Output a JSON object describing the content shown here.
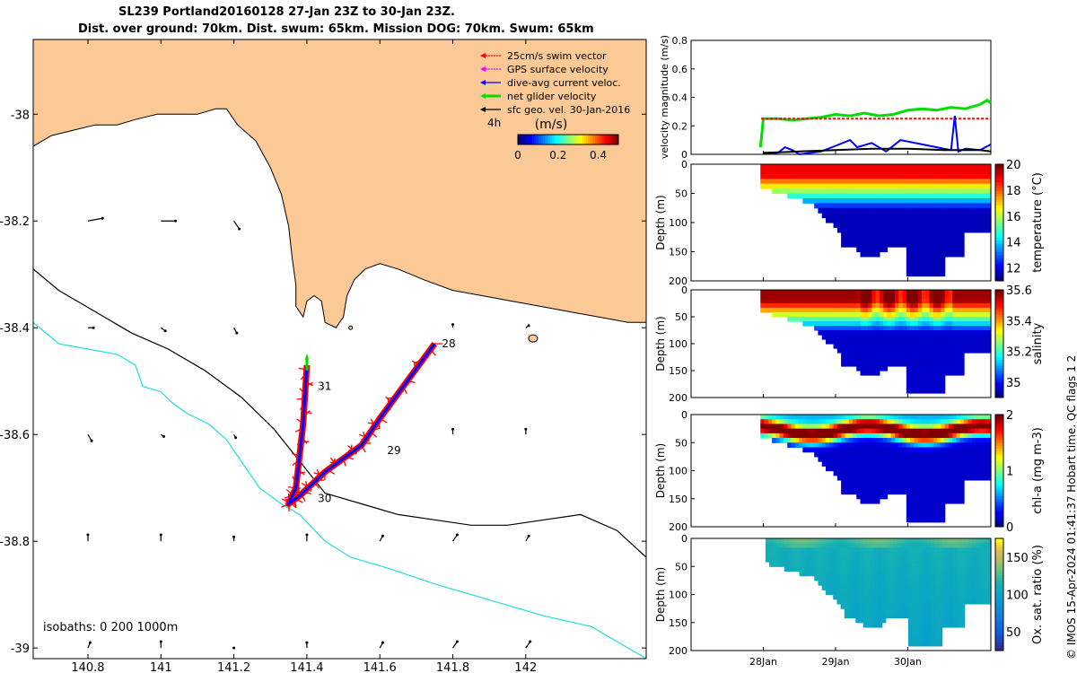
{
  "title": {
    "line1": "SL239 Portland20160128 27-Jan 23Z to 30-Jan 23Z.",
    "line2": "Dist. over ground: 70km. Dist. swum: 65km. Mission DOG: 70km. Swum: 65km"
  },
  "credit": "© IMOS 15-Apr-2024 01:41:37 Hobart time. QC flags 1  2",
  "colors": {
    "land": "#fbc995",
    "swim": "#ff0000",
    "gps": "#ff00ff",
    "dive_avg": "#0000ff",
    "net": "#00dd00",
    "sfc_geo": "#000000",
    "isobath200": "#000000",
    "isobath1000": "#22dddd"
  },
  "chart_data": [
    {
      "type": "scatter",
      "name": "map",
      "xlim": [
        140.65,
        142.33
      ],
      "ylim": [
        -39.02,
        -37.86
      ],
      "xticks": [
        "140.8",
        "141",
        "141.2",
        "141.4",
        "141.6",
        "141.8",
        "142"
      ],
      "xtick_values": [
        140.8,
        141.0,
        141.2,
        141.4,
        141.6,
        141.8,
        142.0
      ],
      "yticks": [
        "-38",
        "-38.2",
        "-38.4",
        "-38.6",
        "-38.8",
        "-39"
      ],
      "ytick_values": [
        -38.0,
        -38.2,
        -38.4,
        -38.6,
        -38.8,
        -39.0
      ],
      "legend": {
        "placement": "top-right",
        "entries": [
          {
            "label": "25cm/s swim vector",
            "color": "#ff0000"
          },
          {
            "label": "GPS surface velocity",
            "color": "#ff00ff"
          },
          {
            "label": "dive-avg current veloc.",
            "color": "#0000ff"
          },
          {
            "label": "net glider velocity",
            "color": "#00dd00"
          },
          {
            "label": "sfc geo. vel. 30-Jan-2016",
            "color": "#000000"
          }
        ]
      },
      "colorbar": {
        "label": "(m/s)",
        "prefix": "4h",
        "ticks": [
          "0",
          "0.2",
          "0.4"
        ],
        "range": [
          0,
          0.5
        ]
      },
      "isobath_note": "isobaths: 0   200  1000m",
      "track_labels": [
        {
          "text": "28",
          "lon": 141.77,
          "lat": -38.43
        },
        {
          "text": "29",
          "lon": 141.62,
          "lat": -38.63
        },
        {
          "text": "30",
          "lon": 141.43,
          "lat": -38.72
        },
        {
          "text": "31",
          "lon": 141.43,
          "lat": -38.51
        }
      ],
      "track": [
        [
          141.75,
          -38.43
        ],
        [
          141.6,
          -38.57
        ],
        [
          141.55,
          -38.62
        ],
        [
          141.45,
          -38.67
        ],
        [
          141.38,
          -38.715
        ],
        [
          141.35,
          -38.73
        ],
        [
          141.37,
          -38.7
        ],
        [
          141.39,
          -38.58
        ],
        [
          141.4,
          -38.47
        ]
      ],
      "coast": [
        [
          140.65,
          -38.06
        ],
        [
          140.7,
          -38.04
        ],
        [
          140.76,
          -38.03
        ],
        [
          140.82,
          -38.02
        ],
        [
          140.88,
          -38.02
        ],
        [
          140.93,
          -38.01
        ],
        [
          140.99,
          -38.0
        ],
        [
          141.05,
          -38.0
        ],
        [
          141.1,
          -38.0
        ],
        [
          141.15,
          -37.99
        ],
        [
          141.18,
          -37.99
        ],
        [
          141.21,
          -38.02
        ],
        [
          141.26,
          -38.05
        ],
        [
          141.3,
          -38.1
        ],
        [
          141.33,
          -38.15
        ],
        [
          141.35,
          -38.21
        ],
        [
          141.36,
          -38.27
        ],
        [
          141.37,
          -38.32
        ],
        [
          141.37,
          -38.36
        ],
        [
          141.39,
          -38.38
        ],
        [
          141.4,
          -38.35
        ],
        [
          141.42,
          -38.34
        ],
        [
          141.44,
          -38.35
        ],
        [
          141.45,
          -38.39
        ],
        [
          141.48,
          -38.4
        ],
        [
          141.5,
          -38.38
        ],
        [
          141.51,
          -38.34
        ],
        [
          141.53,
          -38.31
        ],
        [
          141.56,
          -38.29
        ],
        [
          141.6,
          -38.28
        ],
        [
          141.65,
          -38.29
        ],
        [
          141.72,
          -38.31
        ],
        [
          141.8,
          -38.33
        ],
        [
          141.88,
          -38.34
        ],
        [
          141.96,
          -38.35
        ],
        [
          142.04,
          -38.36
        ],
        [
          142.12,
          -38.37
        ],
        [
          142.2,
          -38.38
        ],
        [
          142.28,
          -38.39
        ],
        [
          142.33,
          -38.39
        ]
      ],
      "isobath_200": [
        [
          140.65,
          -38.29
        ],
        [
          140.72,
          -38.33
        ],
        [
          140.82,
          -38.37
        ],
        [
          140.92,
          -38.41
        ],
        [
          141.02,
          -38.44
        ],
        [
          141.12,
          -38.48
        ],
        [
          141.22,
          -38.53
        ],
        [
          141.31,
          -38.59
        ],
        [
          141.38,
          -38.65
        ],
        [
          141.45,
          -38.71
        ],
        [
          141.55,
          -38.73
        ],
        [
          141.65,
          -38.75
        ],
        [
          141.75,
          -38.76
        ],
        [
          141.85,
          -38.77
        ],
        [
          141.95,
          -38.77
        ],
        [
          142.05,
          -38.76
        ],
        [
          142.15,
          -38.75
        ],
        [
          142.25,
          -38.78
        ],
        [
          142.33,
          -38.83
        ]
      ],
      "isobath_1000": [
        [
          140.65,
          -38.39
        ],
        [
          140.72,
          -38.43
        ],
        [
          140.8,
          -38.44
        ],
        [
          140.88,
          -38.45
        ],
        [
          140.93,
          -38.47
        ],
        [
          140.95,
          -38.51
        ],
        [
          141.0,
          -38.52
        ],
        [
          141.03,
          -38.54
        ],
        [
          141.07,
          -38.56
        ],
        [
          141.13,
          -38.58
        ],
        [
          141.18,
          -38.61
        ],
        [
          141.22,
          -38.65
        ],
        [
          141.27,
          -38.7
        ],
        [
          141.33,
          -38.73
        ],
        [
          141.38,
          -38.75
        ],
        [
          141.45,
          -38.8
        ],
        [
          141.52,
          -38.83
        ],
        [
          141.62,
          -38.85
        ],
        [
          141.75,
          -38.88
        ],
        [
          141.9,
          -38.91
        ],
        [
          142.05,
          -38.94
        ],
        [
          142.18,
          -38.96
        ],
        [
          142.28,
          -39.0
        ],
        [
          142.33,
          -39.02
        ]
      ],
      "geo_vectors": [
        [
          140.8,
          -38.2,
          0.04,
          0.005
        ],
        [
          141.0,
          -38.2,
          0.04,
          0.0
        ],
        [
          141.2,
          -38.2,
          0.015,
          -0.015
        ],
        [
          140.8,
          -38.4,
          0.015,
          0.0
        ],
        [
          141.0,
          -38.4,
          0.012,
          -0.006
        ],
        [
          141.2,
          -38.4,
          0.008,
          -0.01
        ],
        [
          141.8,
          -38.4,
          0.0,
          0.006
        ],
        [
          142.0,
          -38.4,
          0.008,
          0.004
        ],
        [
          140.8,
          -38.6,
          0.01,
          -0.012
        ],
        [
          141.0,
          -38.6,
          0.008,
          -0.004
        ],
        [
          141.2,
          -38.6,
          0.005,
          -0.006
        ],
        [
          141.8,
          -38.6,
          0.0,
          0.01
        ],
        [
          142.0,
          -38.6,
          0.0,
          0.01
        ],
        [
          140.8,
          -38.8,
          0.0,
          0.012
        ],
        [
          141.0,
          -38.8,
          0.0,
          0.012
        ],
        [
          141.2,
          -38.8,
          0.0,
          0.008
        ],
        [
          141.4,
          -38.8,
          0.0,
          0.012
        ],
        [
          141.6,
          -38.8,
          0.008,
          0.01
        ],
        [
          141.8,
          -38.8,
          0.012,
          0.012
        ],
        [
          142.0,
          -38.8,
          0.008,
          0.01
        ],
        [
          140.8,
          -39.0,
          0.006,
          0.01
        ],
        [
          141.0,
          -39.0,
          0.0,
          0.012
        ],
        [
          141.2,
          -39.0,
          0.0,
          0.0
        ],
        [
          141.4,
          -39.0,
          0.0,
          0.01
        ],
        [
          141.6,
          -39.0,
          0.008,
          0.01
        ],
        [
          141.8,
          -39.0,
          0.012,
          0.012
        ],
        [
          142.0,
          -39.0,
          0.012,
          0.012
        ]
      ]
    },
    {
      "type": "line",
      "name": "velocity",
      "ylabel": "velocity magnitude (m/s)",
      "xlim": [
        27.0,
        31.15
      ],
      "ylim": [
        0,
        0.8
      ],
      "yticks": [
        "0",
        "0.2",
        "0.4",
        "0.6",
        "0.8"
      ],
      "ytick_values": [
        0,
        0.2,
        0.4,
        0.6,
        0.8
      ],
      "xticks": [
        "28Jan",
        "29Jan",
        "30Jan"
      ],
      "xtick_values": [
        28,
        29,
        30
      ],
      "series": [
        {
          "name": "net glider velocity",
          "color": "#00dd00",
          "x": [
            27.96,
            28.0,
            28.2,
            28.4,
            28.6,
            28.8,
            29.0,
            29.2,
            29.4,
            29.6,
            29.8,
            30.0,
            30.2,
            30.4,
            30.6,
            30.8,
            31.0,
            31.1,
            31.15
          ],
          "y": [
            0.05,
            0.25,
            0.25,
            0.24,
            0.25,
            0.26,
            0.28,
            0.27,
            0.29,
            0.27,
            0.28,
            0.31,
            0.32,
            0.31,
            0.33,
            0.32,
            0.35,
            0.38,
            0.36
          ]
        },
        {
          "name": "25cm/s swim vector",
          "color": "#ff0000",
          "x": [
            27.97,
            31.15
          ],
          "y": [
            0.25,
            0.25
          ]
        },
        {
          "name": "dive-avg current veloc.",
          "color": "#0000ff",
          "x": [
            28.0,
            28.2,
            28.3,
            28.4,
            28.5,
            28.8,
            29.0,
            29.2,
            29.3,
            29.5,
            29.7,
            29.9,
            30.0,
            30.2,
            30.4,
            30.5,
            30.6,
            30.65,
            30.7,
            30.8,
            31.0,
            31.15
          ],
          "y": [
            0.01,
            0.01,
            0.05,
            0.03,
            0.0,
            0.02,
            0.06,
            0.1,
            0.05,
            0.08,
            0.02,
            0.1,
            0.09,
            0.07,
            0.05,
            0.04,
            0.03,
            0.27,
            0.02,
            0.04,
            0.03,
            0.07
          ]
        },
        {
          "name": "sfc geo. vel.",
          "color": "#000000",
          "x": [
            28.0,
            28.5,
            29.0,
            29.5,
            30.0,
            30.5,
            31.0,
            31.15
          ],
          "y": [
            0.01,
            0.02,
            0.03,
            0.04,
            0.04,
            0.03,
            0.03,
            0.02
          ]
        }
      ]
    },
    {
      "type": "heatmap",
      "name": "temperature",
      "ylabel": "Depth (m)",
      "cbar_label": "temperature (°C)",
      "clim": [
        11,
        20
      ],
      "cbar_ticks": [
        "12",
        "14",
        "16",
        "18",
        "20"
      ],
      "cbar_tick_values": [
        12,
        14,
        16,
        18,
        20
      ],
      "ylim": [
        0,
        200
      ],
      "yticks": [
        "0",
        "50",
        "100",
        "150",
        "200"
      ],
      "ytick_values": [
        0,
        50,
        100,
        150,
        200
      ],
      "x_range": [
        27.96,
        31.15
      ],
      "surface": 19,
      "deep": 11.5,
      "mid": 15.5
    },
    {
      "type": "heatmap",
      "name": "salinity",
      "ylabel": "Depth (m)",
      "cbar_label": "salinity",
      "clim": [
        34.9,
        35.6
      ],
      "cbar_ticks": [
        "35",
        "35.2",
        "35.4",
        "35.6"
      ],
      "cbar_tick_values": [
        35.0,
        35.2,
        35.4,
        35.6
      ],
      "ylim": [
        0,
        200
      ],
      "yticks": [
        "0",
        "50",
        "100",
        "150",
        "200"
      ],
      "ytick_values": [
        0,
        50,
        100,
        150,
        200
      ],
      "x_range": [
        27.96,
        31.15
      ],
      "surface": 35.58,
      "deep": 34.95,
      "mid": 35.25
    },
    {
      "type": "heatmap",
      "name": "chl-a",
      "ylabel": "Depth (m)",
      "cbar_label": "chl-a (mg m-3)",
      "clim": [
        0,
        2
      ],
      "cbar_ticks": [
        "0",
        "1",
        "2"
      ],
      "cbar_tick_values": [
        0,
        1,
        2
      ],
      "ylim": [
        0,
        200
      ],
      "yticks": [
        "0",
        "50",
        "100",
        "150",
        "200"
      ],
      "ytick_values": [
        0,
        50,
        100,
        150,
        200
      ],
      "x_range": [
        27.96,
        31.15
      ],
      "surface": 0.9,
      "deep": 0.1,
      "mid": 2.0
    },
    {
      "type": "heatmap",
      "name": "oxygen",
      "ylabel": "Depth (m)",
      "cbar_label": "Ox. sat. ratio (%)",
      "clim": [
        25,
        175
      ],
      "cbar_ticks": [
        "50",
        "100",
        "150"
      ],
      "cbar_tick_values": [
        50,
        100,
        150
      ],
      "ylim": [
        0,
        200
      ],
      "yticks": [
        "0",
        "50",
        "100",
        "150",
        "200"
      ],
      "ytick_values": [
        0,
        50,
        100,
        150,
        200
      ],
      "x_range": [
        28.03,
        31.15
      ],
      "surface": 125,
      "deep": 95,
      "mid": 110,
      "xticks": [
        "28Jan",
        "29Jan",
        "30Jan"
      ],
      "xtick_values": [
        28,
        29,
        30
      ]
    }
  ]
}
